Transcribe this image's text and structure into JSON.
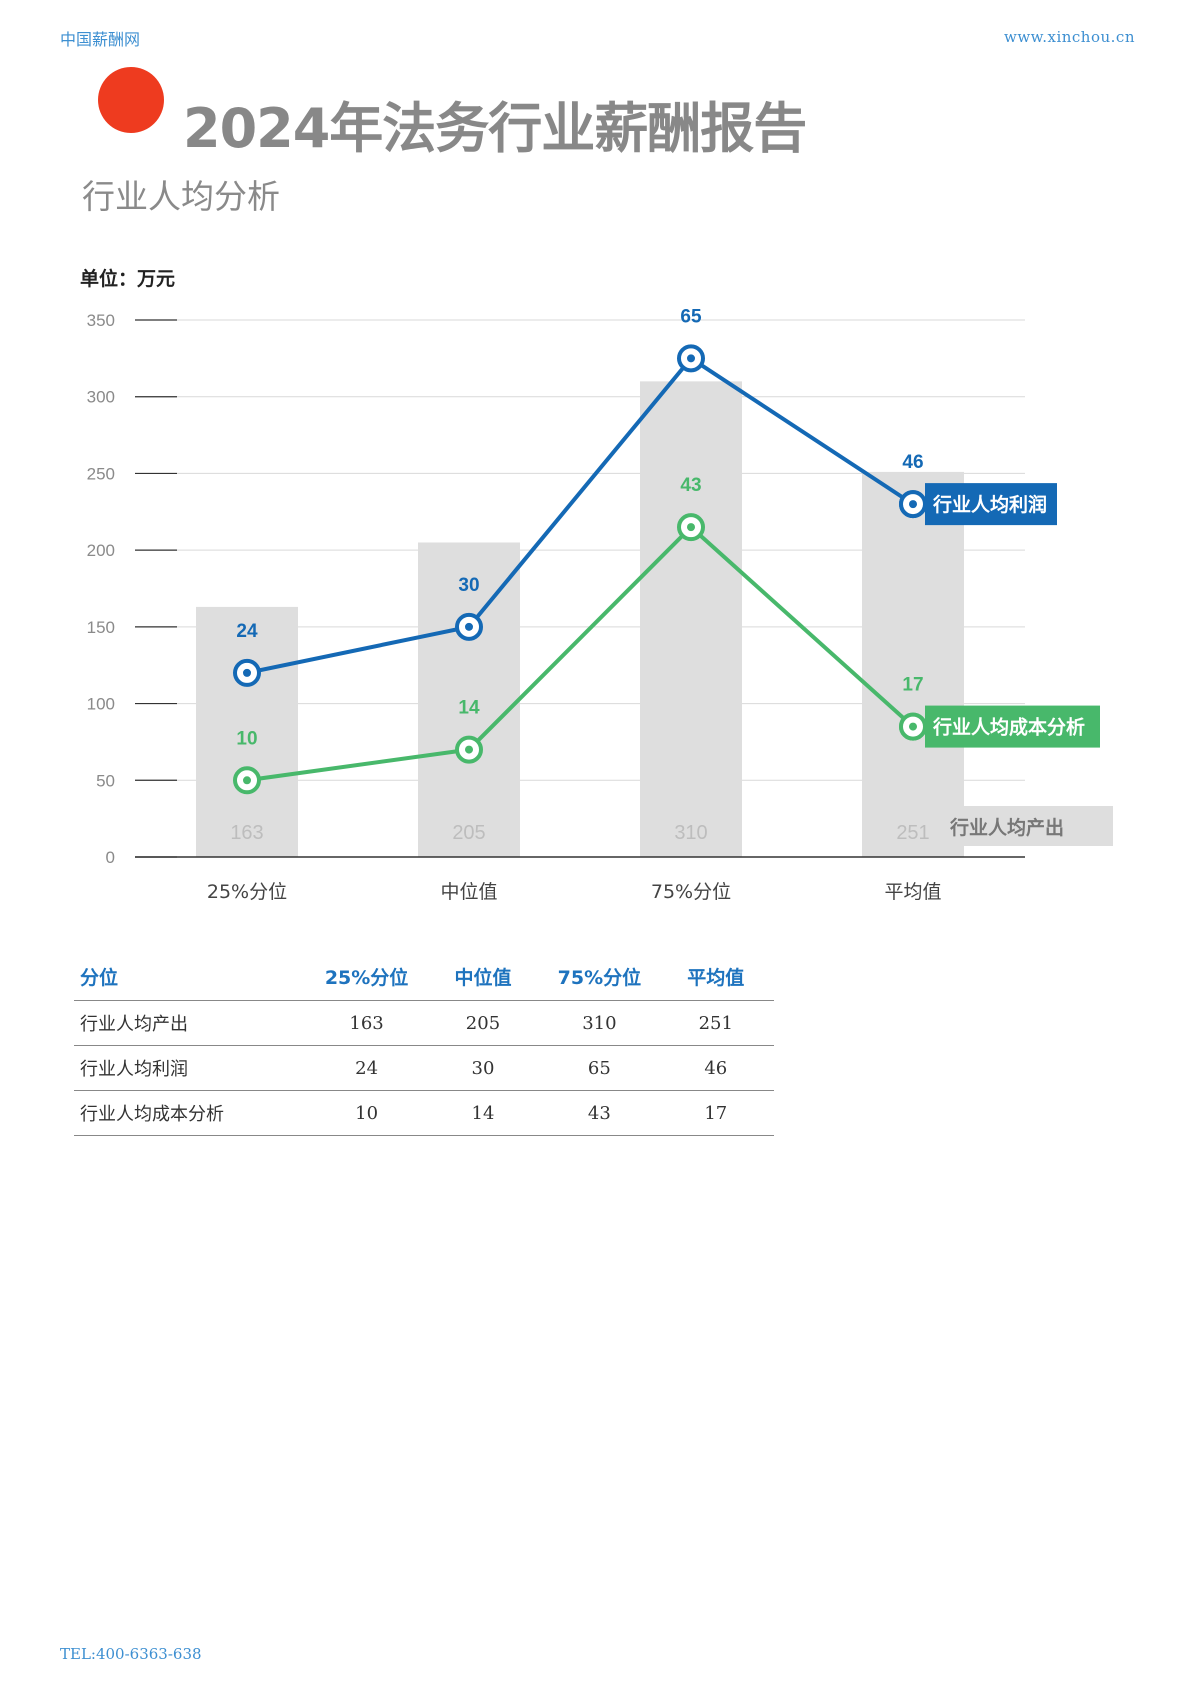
{
  "header": {
    "left": "中国薪酬网",
    "right": "www.xinchou.cn"
  },
  "title": "2024年法务行业薪酬报告",
  "subtitle": "行业人均分析",
  "unit_label": "单位：万元",
  "chart_data": {
    "type": "bar+line",
    "categories": [
      "25%分位",
      "中位值",
      "75%分位",
      "平均值"
    ],
    "y_ticks": [
      0,
      50,
      100,
      150,
      200,
      250,
      300,
      350
    ],
    "ylim": [
      0,
      350
    ],
    "grid": true,
    "bars": {
      "name": "行业人均产出",
      "values": [
        163,
        205,
        310,
        251
      ],
      "color": "#dedede"
    },
    "series": [
      {
        "name": "行业人均利润",
        "plot_values": [
          120,
          150,
          325,
          230
        ],
        "labels": [
          24,
          30,
          65,
          46
        ],
        "color": "#1469b5"
      },
      {
        "name": "行业人均成本分析",
        "plot_values": [
          50,
          70,
          215,
          85
        ],
        "labels": [
          10,
          14,
          43,
          17
        ],
        "color": "#48b86b"
      }
    ]
  },
  "table": {
    "headers": [
      "分位",
      "25%分位",
      "中位值",
      "75%分位",
      "平均值"
    ],
    "rows": [
      [
        "行业人均产出",
        "163",
        "205",
        "310",
        "251"
      ],
      [
        "行业人均利润",
        "24",
        "30",
        "65",
        "46"
      ],
      [
        "行业人均成本分析",
        "10",
        "14",
        "43",
        "17"
      ]
    ]
  },
  "footer": "TEL:400-6363-638"
}
